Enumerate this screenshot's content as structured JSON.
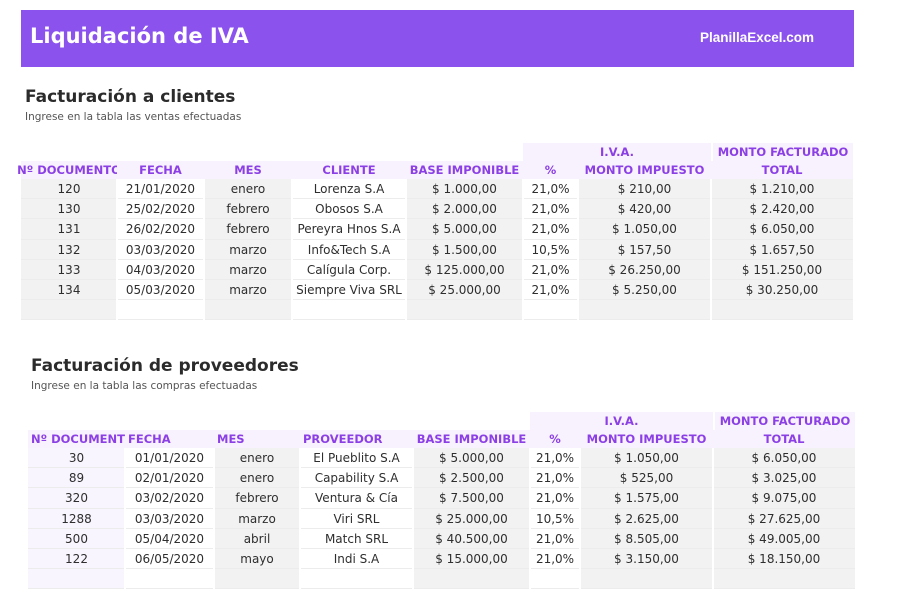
{
  "header": {
    "title": "Liquidación de IVA",
    "site": "PlanillaExcel.com"
  },
  "clientes": {
    "title": "Facturación a clientes",
    "subtitle": "Ingrese en la tabla las ventas efectuadas",
    "group_iva": "I.V.A.",
    "group_monto": "MONTO FACTURADO",
    "columns": [
      "Nº DOCUMENTO",
      "FECHA",
      "MES",
      "CLIENTE",
      "BASE IMPONIBLE",
      "%",
      "MONTO IMPUESTO",
      "TOTAL"
    ],
    "rows": [
      [
        "120",
        "21/01/2020",
        "enero",
        "Lorenza S.A",
        "$ 1.000,00",
        "21,0%",
        "$ 210,00",
        "$ 1.210,00"
      ],
      [
        "130",
        "25/02/2020",
        "febrero",
        "Obosos S.A",
        "$ 2.000,00",
        "21,0%",
        "$ 420,00",
        "$ 2.420,00"
      ],
      [
        "131",
        "26/02/2020",
        "febrero",
        "Pereyra Hnos S.A",
        "$ 5.000,00",
        "21,0%",
        "$ 1.050,00",
        "$ 6.050,00"
      ],
      [
        "132",
        "03/03/2020",
        "marzo",
        "Info&Tech S.A",
        "$ 1.500,00",
        "10,5%",
        "$ 157,50",
        "$ 1.657,50"
      ],
      [
        "133",
        "04/03/2020",
        "marzo",
        "Calígula Corp.",
        "$ 125.000,00",
        "21,0%",
        "$ 26.250,00",
        "$ 151.250,00"
      ],
      [
        "134",
        "05/03/2020",
        "marzo",
        "Siempre Viva SRL",
        "$ 25.000,00",
        "21,0%",
        "$ 5.250,00",
        "$ 30.250,00"
      ]
    ]
  },
  "proveedores": {
    "title": "Facturación de proveedores",
    "subtitle": "Ingrese en la tabla las compras efectuadas",
    "group_iva": "I.V.A.",
    "group_monto": "MONTO FACTURADO",
    "columns": [
      "Nº DOCUMENTO",
      "FECHA",
      "MES",
      "PROVEEDOR",
      "BASE IMPONIBLE",
      "%",
      "MONTO IMPUESTO",
      "TOTAL"
    ],
    "rows": [
      [
        "30",
        "01/01/2020",
        "enero",
        "El Pueblito S.A",
        "$ 5.000,00",
        "21,0%",
        "$ 1.050,00",
        "$ 6.050,00"
      ],
      [
        "89",
        "02/01/2020",
        "enero",
        "Capability S.A",
        "$ 2.500,00",
        "21,0%",
        "$ 525,00",
        "$ 3.025,00"
      ],
      [
        "320",
        "03/02/2020",
        "febrero",
        "Ventura & Cía",
        "$ 7.500,00",
        "21,0%",
        "$ 1.575,00",
        "$ 9.075,00"
      ],
      [
        "1288",
        "03/03/2020",
        "marzo",
        "Viri SRL",
        "$ 25.000,00",
        "10,5%",
        "$ 2.625,00",
        "$ 27.625,00"
      ],
      [
        "500",
        "05/04/2020",
        "abril",
        "Match SRL",
        "$ 40.500,00",
        "21,0%",
        "$ 8.505,00",
        "$ 49.005,00"
      ],
      [
        "122",
        "06/05/2020",
        "mayo",
        "Indi S.A",
        "$ 15.000,00",
        "21,0%",
        "$ 3.150,00",
        "$ 18.150,00"
      ]
    ]
  },
  "colors": {
    "banner": "#8b52ee",
    "header_text": "#8b3fe5",
    "header_band": "#f7f2fd",
    "cell_gray": "#f2f2f2"
  }
}
